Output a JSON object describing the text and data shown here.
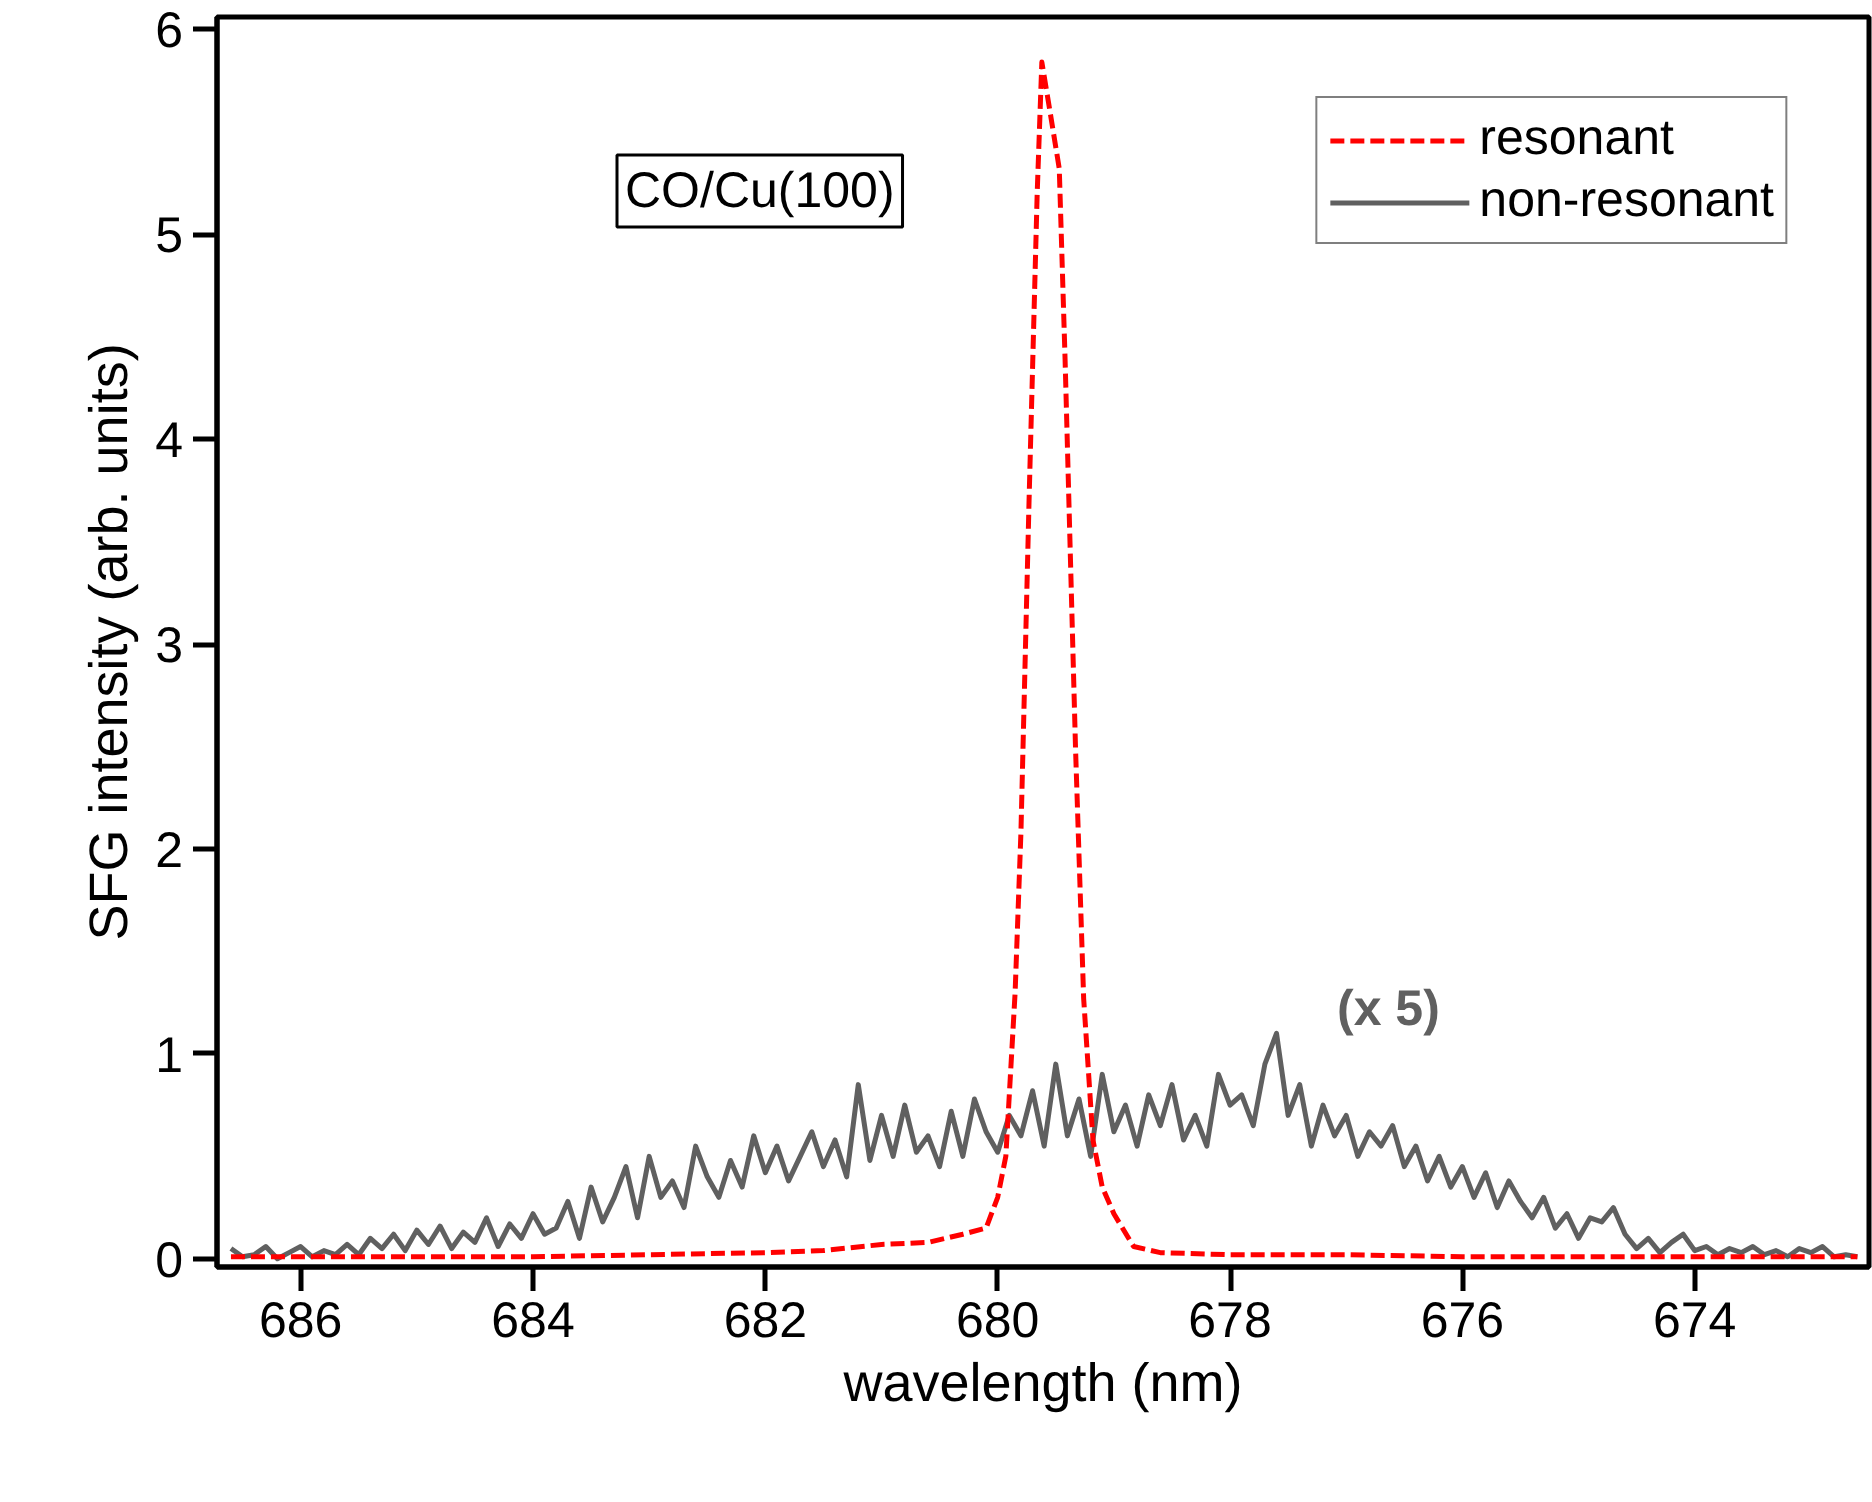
{
  "chart_data": {
    "type": "line",
    "xlabel": "wavelength (nm)",
    "ylabel": "SFG intensity (arb. units)",
    "xlim": [
      686.72,
      672.5
    ],
    "ylim": [
      -0.04,
      6.06
    ],
    "xticks": [
      686,
      684,
      682,
      680,
      678,
      676,
      674
    ],
    "yticks": [
      0,
      1,
      2,
      3,
      4,
      5,
      6
    ],
    "grid": false,
    "legend": "top right",
    "marker": "none",
    "annotations": [
      "CO/Cu(100)",
      "(x 5)"
    ],
    "series": [
      {
        "name": "resonant",
        "color": "#ff0000",
        "line_style": "dashed",
        "x": [
          686.6,
          685,
          684,
          683,
          682,
          681.5,
          681,
          680.6,
          680.3,
          680.1,
          680.0,
          679.93,
          679.85,
          679.8,
          679.73,
          679.66,
          679.62,
          679.55,
          679.47,
          679.42,
          679.33,
          679.26,
          679.18,
          679.1,
          679.0,
          678.83,
          678.6,
          678,
          677,
          676,
          675,
          674,
          672.6
        ],
        "values": [
          0.01,
          0.01,
          0.01,
          0.02,
          0.03,
          0.04,
          0.07,
          0.08,
          0.12,
          0.15,
          0.3,
          0.5,
          1.3,
          2.08,
          3.7,
          5.2,
          5.84,
          5.6,
          5.32,
          4.39,
          2.49,
          1.27,
          0.58,
          0.35,
          0.22,
          0.06,
          0.03,
          0.02,
          0.02,
          0.01,
          0.01,
          0.01,
          0.01
        ]
      },
      {
        "name": "non-resonant",
        "color": "#606060",
        "line_style": "solid",
        "x": [
          686.6,
          686.5,
          686.4,
          686.3,
          686.2,
          686.1,
          686.0,
          685.9,
          685.8,
          685.7,
          685.6,
          685.5,
          685.4,
          685.3,
          685.2,
          685.1,
          685.0,
          684.9,
          684.8,
          684.7,
          684.6,
          684.5,
          684.4,
          684.3,
          684.2,
          684.1,
          684.0,
          683.9,
          683.8,
          683.7,
          683.6,
          683.5,
          683.4,
          683.3,
          683.2,
          683.1,
          683.0,
          682.9,
          682.8,
          682.7,
          682.6,
          682.5,
          682.4,
          682.3,
          682.2,
          682.1,
          682.0,
          681.9,
          681.8,
          681.7,
          681.6,
          681.5,
          681.4,
          681.3,
          681.2,
          681.1,
          681.0,
          680.9,
          680.8,
          680.7,
          680.6,
          680.5,
          680.4,
          680.3,
          680.2,
          680.1,
          680.0,
          679.9,
          679.8,
          679.7,
          679.6,
          679.5,
          679.4,
          679.3,
          679.2,
          679.1,
          679.0,
          678.9,
          678.8,
          678.7,
          678.6,
          678.5,
          678.4,
          678.3,
          678.2,
          678.1,
          678.0,
          677.9,
          677.8,
          677.7,
          677.6,
          677.5,
          677.4,
          677.3,
          677.2,
          677.1,
          677.0,
          676.9,
          676.8,
          676.7,
          676.6,
          676.5,
          676.4,
          676.3,
          676.2,
          676.1,
          676.0,
          675.9,
          675.8,
          675.7,
          675.6,
          675.5,
          675.4,
          675.3,
          675.2,
          675.1,
          675.0,
          674.9,
          674.8,
          674.7,
          674.6,
          674.5,
          674.4,
          674.3,
          674.2,
          674.1,
          674.0,
          673.9,
          673.8,
          673.7,
          673.6,
          673.5,
          673.4,
          673.3,
          673.2,
          673.1,
          673.0,
          672.9,
          672.8,
          672.7,
          672.6
        ],
        "values": [
          0.05,
          0.01,
          0.02,
          0.06,
          0.0,
          0.03,
          0.06,
          0.01,
          0.04,
          0.02,
          0.07,
          0.02,
          0.1,
          0.05,
          0.12,
          0.04,
          0.14,
          0.07,
          0.16,
          0.05,
          0.13,
          0.08,
          0.2,
          0.06,
          0.17,
          0.1,
          0.22,
          0.12,
          0.15,
          0.28,
          0.1,
          0.35,
          0.18,
          0.3,
          0.45,
          0.2,
          0.5,
          0.3,
          0.38,
          0.25,
          0.55,
          0.4,
          0.3,
          0.48,
          0.35,
          0.6,
          0.42,
          0.55,
          0.38,
          0.5,
          0.62,
          0.45,
          0.58,
          0.4,
          0.85,
          0.48,
          0.7,
          0.5,
          0.75,
          0.52,
          0.6,
          0.45,
          0.72,
          0.5,
          0.78,
          0.62,
          0.52,
          0.7,
          0.6,
          0.82,
          0.55,
          0.95,
          0.6,
          0.78,
          0.5,
          0.9,
          0.62,
          0.75,
          0.55,
          0.8,
          0.65,
          0.85,
          0.58,
          0.7,
          0.55,
          0.9,
          0.75,
          0.8,
          0.65,
          0.95,
          1.1,
          0.7,
          0.85,
          0.55,
          0.75,
          0.6,
          0.7,
          0.5,
          0.62,
          0.55,
          0.65,
          0.45,
          0.55,
          0.38,
          0.5,
          0.35,
          0.45,
          0.3,
          0.42,
          0.25,
          0.38,
          0.28,
          0.2,
          0.3,
          0.15,
          0.22,
          0.1,
          0.2,
          0.18,
          0.25,
          0.12,
          0.05,
          0.1,
          0.03,
          0.08,
          0.12,
          0.04,
          0.06,
          0.02,
          0.05,
          0.03,
          0.06,
          0.02,
          0.04,
          0.01,
          0.05,
          0.03,
          0.06,
          0.01,
          0.02,
          0.01
        ]
      }
    ]
  }
}
